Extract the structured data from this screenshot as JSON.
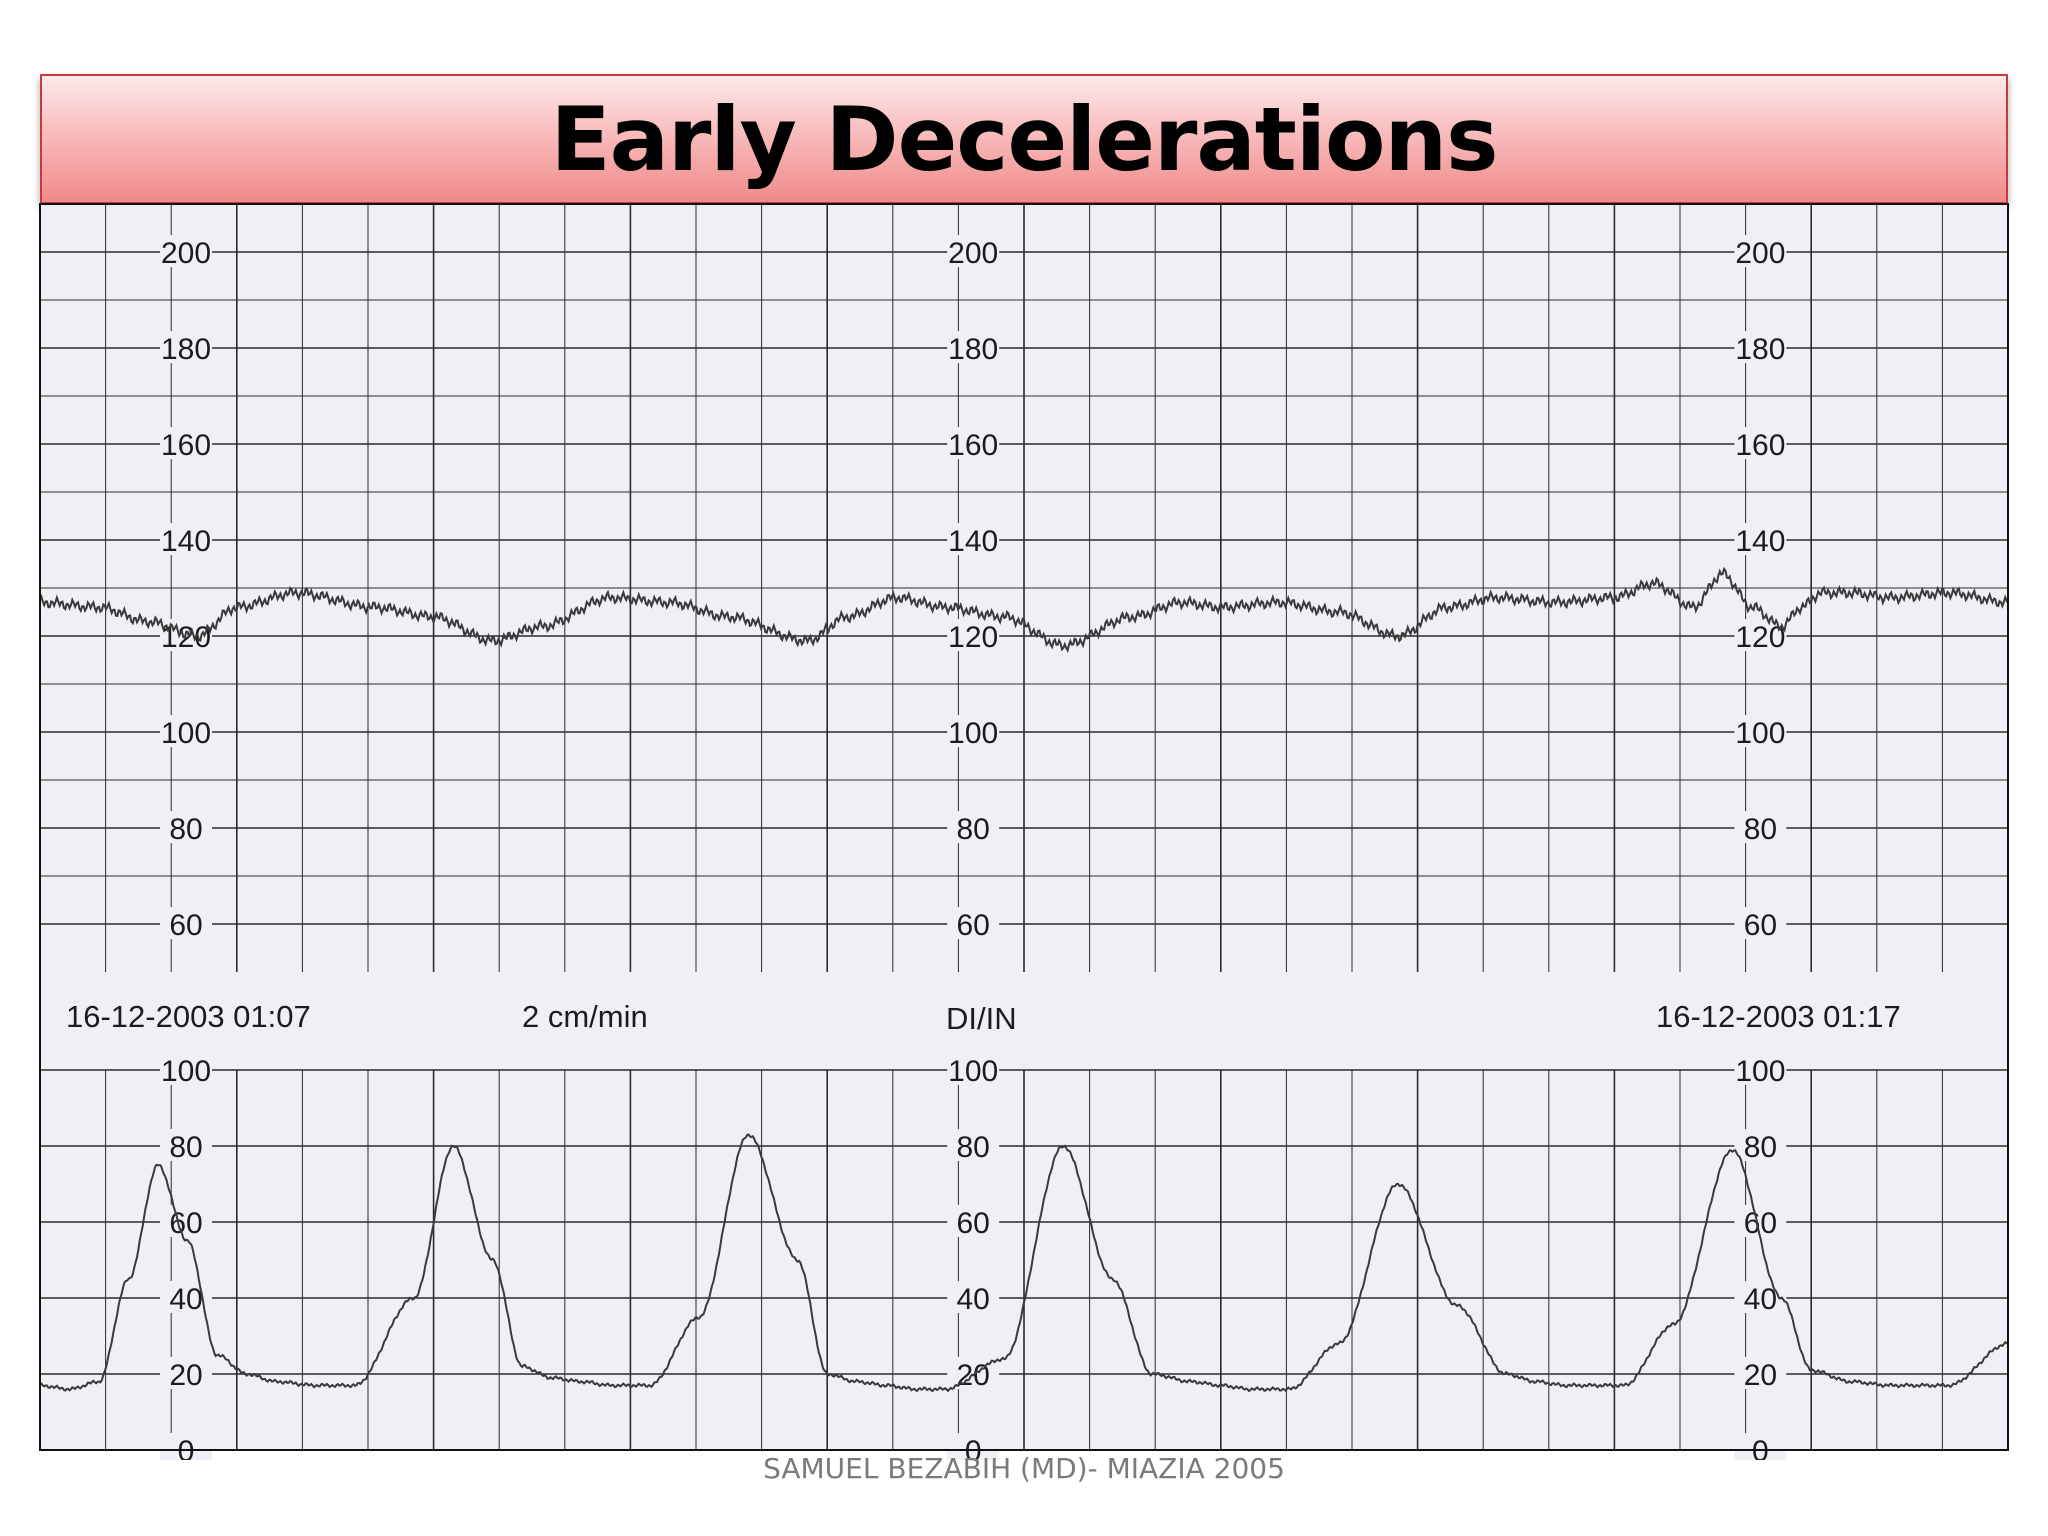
{
  "slide": {
    "title": "Early Decelerations",
    "footer": "SAMUEL BEZABIH (MD)- MIAZIA 2005"
  },
  "colors": {
    "paper": "#eef0f6",
    "grid": "#2b2b2b",
    "trace": "#3a3a3a",
    "title_bar": "#f7b3b3",
    "title_border": "#c83a3a"
  },
  "chart_data": [
    {
      "type": "line",
      "name": "fetal-heart-rate",
      "ylim": [
        50,
        210
      ],
      "yticks": [
        200,
        180,
        160,
        140,
        120,
        100,
        80,
        60
      ],
      "x_minutes": [
        0,
        10
      ],
      "grid": true,
      "series": [
        {
          "x": [
            0,
            0.3,
            0.55,
            0.8,
            1.0,
            1.3,
            1.7,
            2.0,
            2.3,
            2.55,
            2.9,
            3.2,
            3.5,
            3.9,
            4.1,
            4.35,
            4.6,
            4.9,
            5.2,
            5.55,
            5.8,
            6.0,
            6.3,
            6.6,
            6.9,
            7.15,
            7.4,
            7.7,
            8.0,
            8.2,
            8.4,
            8.55,
            8.7,
            8.85,
            8.95,
            9.05,
            9.2,
            9.4,
            9.7,
            10.0
          ],
          "values": [
            127,
            126,
            123,
            120,
            126,
            129,
            126,
            124,
            119,
            122,
            128,
            127,
            124,
            119,
            124,
            128,
            126,
            124,
            118,
            124,
            127,
            126,
            127,
            125,
            120,
            126,
            128,
            127,
            128,
            131,
            126,
            133,
            126,
            122,
            126,
            129,
            129,
            128,
            129,
            127
          ]
        }
      ]
    },
    {
      "type": "line",
      "name": "uterine-activity",
      "ylim": [
        0,
        100
      ],
      "yticks": [
        100,
        80,
        60,
        40,
        20,
        0
      ],
      "x_minutes": [
        0,
        10
      ],
      "grid": true,
      "series": [
        {
          "x": [
            0,
            0.15,
            0.3,
            0.45,
            0.6,
            0.75,
            0.9,
            1.05,
            1.2,
            1.4,
            1.6,
            1.9,
            2.1,
            2.3,
            2.45,
            2.6,
            2.75,
            2.9,
            3.1,
            3.35,
            3.6,
            3.85,
            4.0,
            4.15,
            4.3,
            4.45,
            4.6,
            4.9,
            5.2,
            5.45,
            5.65,
            5.85,
            6.0,
            6.15,
            6.35,
            6.6,
            6.9,
            7.2,
            7.45,
            7.6,
            7.75,
            7.9,
            8.05,
            8.3,
            8.6,
            8.85,
            9.0,
            9.2,
            9.4,
            9.7,
            10.0
          ],
          "values": [
            17,
            16,
            18,
            45,
            75,
            55,
            25,
            20,
            18,
            17,
            17,
            40,
            80,
            50,
            22,
            19,
            18,
            17,
            17,
            35,
            83,
            50,
            20,
            18,
            17,
            16,
            16,
            24,
            80,
            45,
            20,
            18,
            17,
            16,
            16,
            28,
            70,
            38,
            20,
            18,
            17,
            17,
            17,
            33,
            79,
            40,
            21,
            18,
            17,
            17,
            28
          ]
        }
      ]
    }
  ],
  "strip": {
    "left_timestamp": "16-12-2003 01:07",
    "paper_speed": "2 cm/min",
    "mode": "DI/IN",
    "right_timestamp": "16-12-2003 01:17"
  }
}
